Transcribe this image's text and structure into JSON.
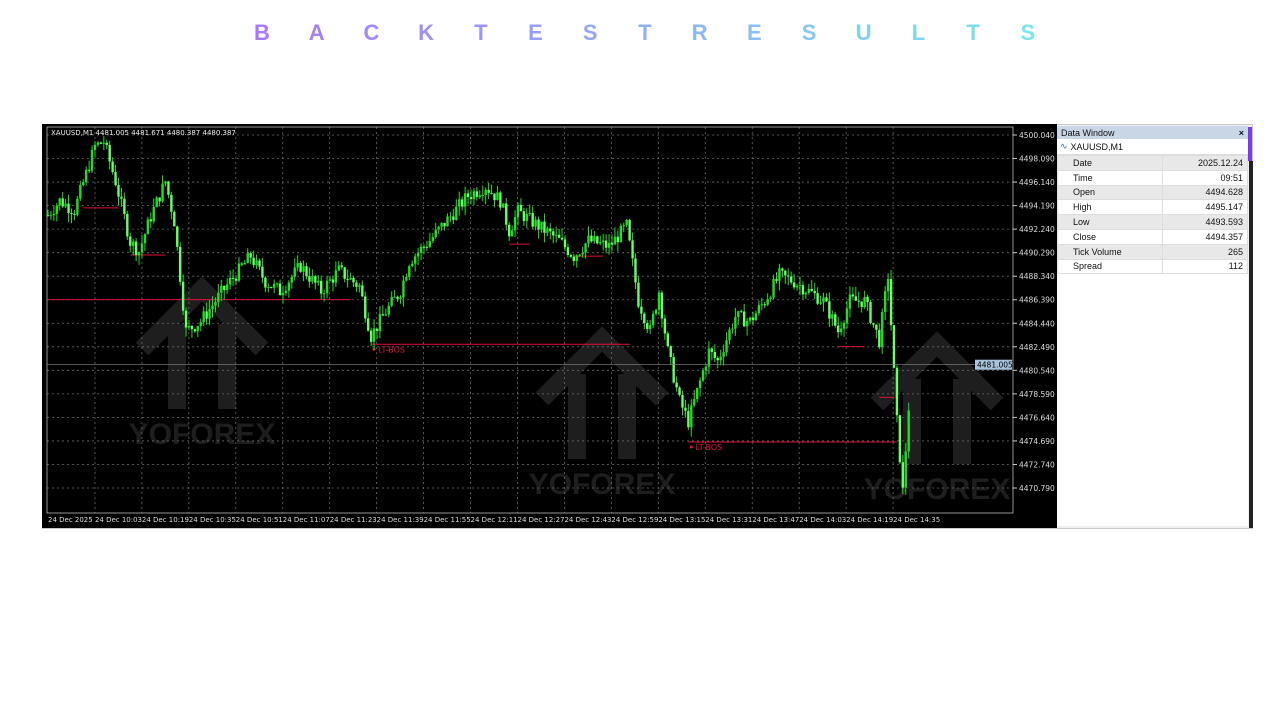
{
  "title": "BACKTESTRESULTS",
  "chart": {
    "info_label": "XAUUSD,M1  4481.005 4481.671 4480.387 4480.387",
    "watermark": "YOFOREX",
    "current_price_label": "4481.005",
    "colors": {
      "background": "#000000",
      "candle": "#22dd22",
      "candle_light": "#66ff66",
      "level": "#e0103a",
      "grid": "#6a6a6a",
      "price_tag": "#a9c3dc"
    }
  },
  "chart_data": {
    "type": "line",
    "symbol": "XAUUSD,M1",
    "yticks": [
      "4500.040",
      "4498.090",
      "4496.140",
      "4494.190",
      "4492.240",
      "4490.290",
      "4488.340",
      "4486.390",
      "4484.440",
      "4482.490",
      "4480.540",
      "4478.590",
      "4476.640",
      "4474.690",
      "4472.740",
      "4470.790"
    ],
    "xticks": [
      "24 Dec 2025",
      "24 Dec 10:03",
      "24 Dec 10:19",
      "24 Dec 10:35",
      "24 Dec 10:51",
      "24 Dec 11:07",
      "24 Dec 11:23",
      "24 Dec 11:39",
      "24 Dec 11:55",
      "24 Dec 12:11",
      "24 Dec 12:27",
      "24 Dec 12:43",
      "24 Dec 12:59",
      "24 Dec 13:15",
      "24 Dec 13:31",
      "24 Dec 13:47",
      "24 Dec 14:03",
      "24 Dec 14:19",
      "24 Dec 14:35"
    ],
    "ylim": [
      4469.5,
      4500.6
    ],
    "grid": true,
    "series": [
      {
        "points": [
          [
            "09:47",
            4493.4
          ],
          [
            "09:51",
            4494.6
          ],
          [
            "09:56",
            4493.8
          ],
          [
            "10:03",
            4499.1
          ],
          [
            "10:06",
            4499.5
          ],
          [
            "10:10",
            4496.2
          ],
          [
            "10:15",
            4491.2
          ],
          [
            "10:18",
            4490.4
          ],
          [
            "10:22",
            4493.3
          ],
          [
            "10:27",
            4496.2
          ],
          [
            "10:30",
            4492.9
          ],
          [
            "10:34",
            4483.8
          ],
          [
            "10:39",
            4484.6
          ],
          [
            "10:44",
            4486.3
          ],
          [
            "10:49",
            4487.9
          ],
          [
            "10:56",
            4490.0
          ],
          [
            "11:01",
            4487.9
          ],
          [
            "11:06",
            4487.1
          ],
          [
            "11:13",
            4489.2
          ],
          [
            "11:20",
            4487.1
          ],
          [
            "11:26",
            4488.8
          ],
          [
            "11:33",
            4487.5
          ],
          [
            "11:37",
            4483.4
          ],
          [
            "11:42",
            4485.4
          ],
          [
            "11:47",
            4487.1
          ],
          [
            "11:50",
            4489.6
          ],
          [
            "11:57",
            4491.3
          ],
          [
            "12:04",
            4493.3
          ],
          [
            "12:10",
            4495.0
          ],
          [
            "12:16",
            4495.8
          ],
          [
            "12:21",
            4494.6
          ],
          [
            "12:24",
            4492.1
          ],
          [
            "12:27",
            4493.7
          ],
          [
            "12:34",
            4492.5
          ],
          [
            "12:41",
            4491.3
          ],
          [
            "12:46",
            4490.0
          ],
          [
            "12:51",
            4491.3
          ],
          [
            "12:58",
            4490.8
          ],
          [
            "13:04",
            4492.5
          ],
          [
            "13:08",
            4486.3
          ],
          [
            "13:12",
            4483.8
          ],
          [
            "13:15",
            4487.1
          ],
          [
            "13:18",
            4482.1
          ],
          [
            "13:22",
            4478.0
          ],
          [
            "13:25",
            4476.3
          ],
          [
            "13:29",
            4479.6
          ],
          [
            "13:32",
            4482.1
          ],
          [
            "13:35",
            4481.3
          ],
          [
            "13:41",
            4485.0
          ],
          [
            "13:46",
            4484.6
          ],
          [
            "13:51",
            4486.3
          ],
          [
            "13:56",
            4488.4
          ],
          [
            "14:01",
            4487.9
          ],
          [
            "14:06",
            4487.1
          ],
          [
            "14:11",
            4486.3
          ],
          [
            "14:16",
            4483.8
          ],
          [
            "14:20",
            4486.3
          ],
          [
            "14:25",
            4486.3
          ],
          [
            "14:30",
            4483.0
          ],
          [
            "14:33",
            4488.4
          ],
          [
            "14:36",
            4476.3
          ],
          [
            "14:38",
            4470.5
          ],
          [
            "14:41",
            4481.0
          ]
        ]
      }
    ],
    "levels": [
      {
        "label": "LT-BOS",
        "price": 4482.7,
        "from": "11:37",
        "to": "13:05"
      },
      {
        "label": "LT-BOS",
        "price": 4474.6,
        "from": "13:25",
        "to": "14:36"
      },
      {
        "label": "",
        "price": 4486.4,
        "from": "09:47",
        "to": "11:30"
      },
      {
        "label": "",
        "price": 4494.0,
        "from": "09:59",
        "to": "10:11"
      },
      {
        "label": "",
        "price": 4490.1,
        "from": "10:15",
        "to": "10:27"
      },
      {
        "label": "",
        "price": 4491.0,
        "from": "12:24",
        "to": "12:31"
      },
      {
        "label": "",
        "price": 4490.0,
        "from": "12:46",
        "to": "12:56"
      },
      {
        "label": "",
        "price": 4482.5,
        "from": "14:16",
        "to": "14:25"
      },
      {
        "label": "",
        "price": 4478.3,
        "from": "14:30",
        "to": "14:35"
      }
    ]
  },
  "data_window": {
    "title": "Data Window",
    "close": "×",
    "symbol": "XAUUSD,M1",
    "rows": [
      {
        "k": "Date",
        "v": "2025.12.24"
      },
      {
        "k": "Time",
        "v": "09:51"
      },
      {
        "k": "Open",
        "v": "4494.628"
      },
      {
        "k": "High",
        "v": "4495.147"
      },
      {
        "k": "Low",
        "v": "4493.593"
      },
      {
        "k": "Close",
        "v": "4494.357"
      },
      {
        "k": "Tick Volume",
        "v": "265"
      },
      {
        "k": "Spread",
        "v": "112"
      }
    ]
  }
}
